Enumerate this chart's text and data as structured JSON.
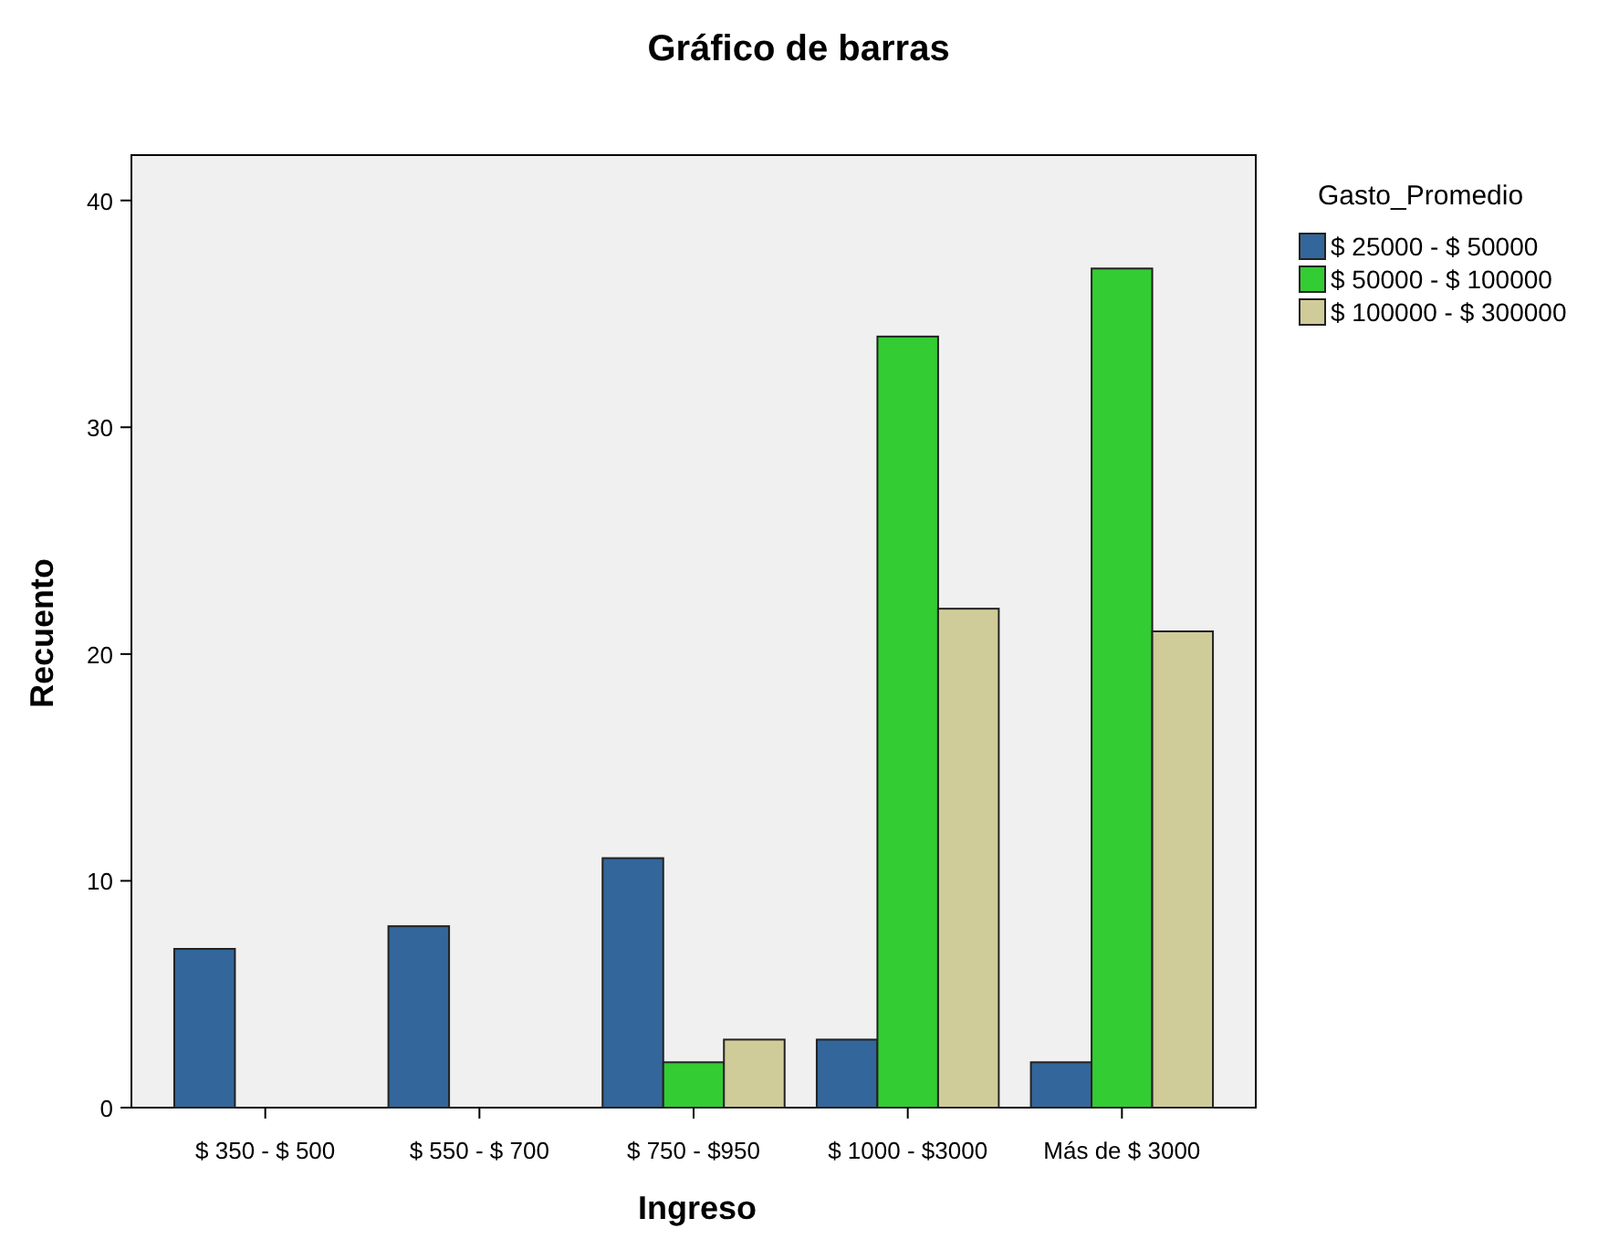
{
  "chart_data": {
    "type": "bar",
    "title": "Gráfico de barras",
    "xlabel": "Ingreso",
    "ylabel": "Recuento",
    "legend_title": "Gasto_Promedio",
    "legend": "right",
    "categories": [
      "$ 350 - $ 500",
      "$ 550 - $ 700",
      "$ 750 - $950",
      "$ 1000 - $3000",
      "Más de $ 3000"
    ],
    "series": [
      {
        "name": "$ 25000 - $ 50000",
        "color": "#33669a",
        "values": [
          7,
          8,
          11,
          3,
          2
        ]
      },
      {
        "name": "$ 50000 - $ 100000",
        "color": "#33cc33",
        "values": [
          null,
          null,
          2,
          34,
          37
        ]
      },
      {
        "name": "$ 100000 - $ 300000",
        "color": "#d0cc99",
        "values": [
          null,
          null,
          3,
          22,
          21
        ]
      }
    ],
    "ylim": [
      0,
      42
    ],
    "yticks": [
      0,
      10,
      20,
      30,
      40
    ],
    "grid": false
  }
}
